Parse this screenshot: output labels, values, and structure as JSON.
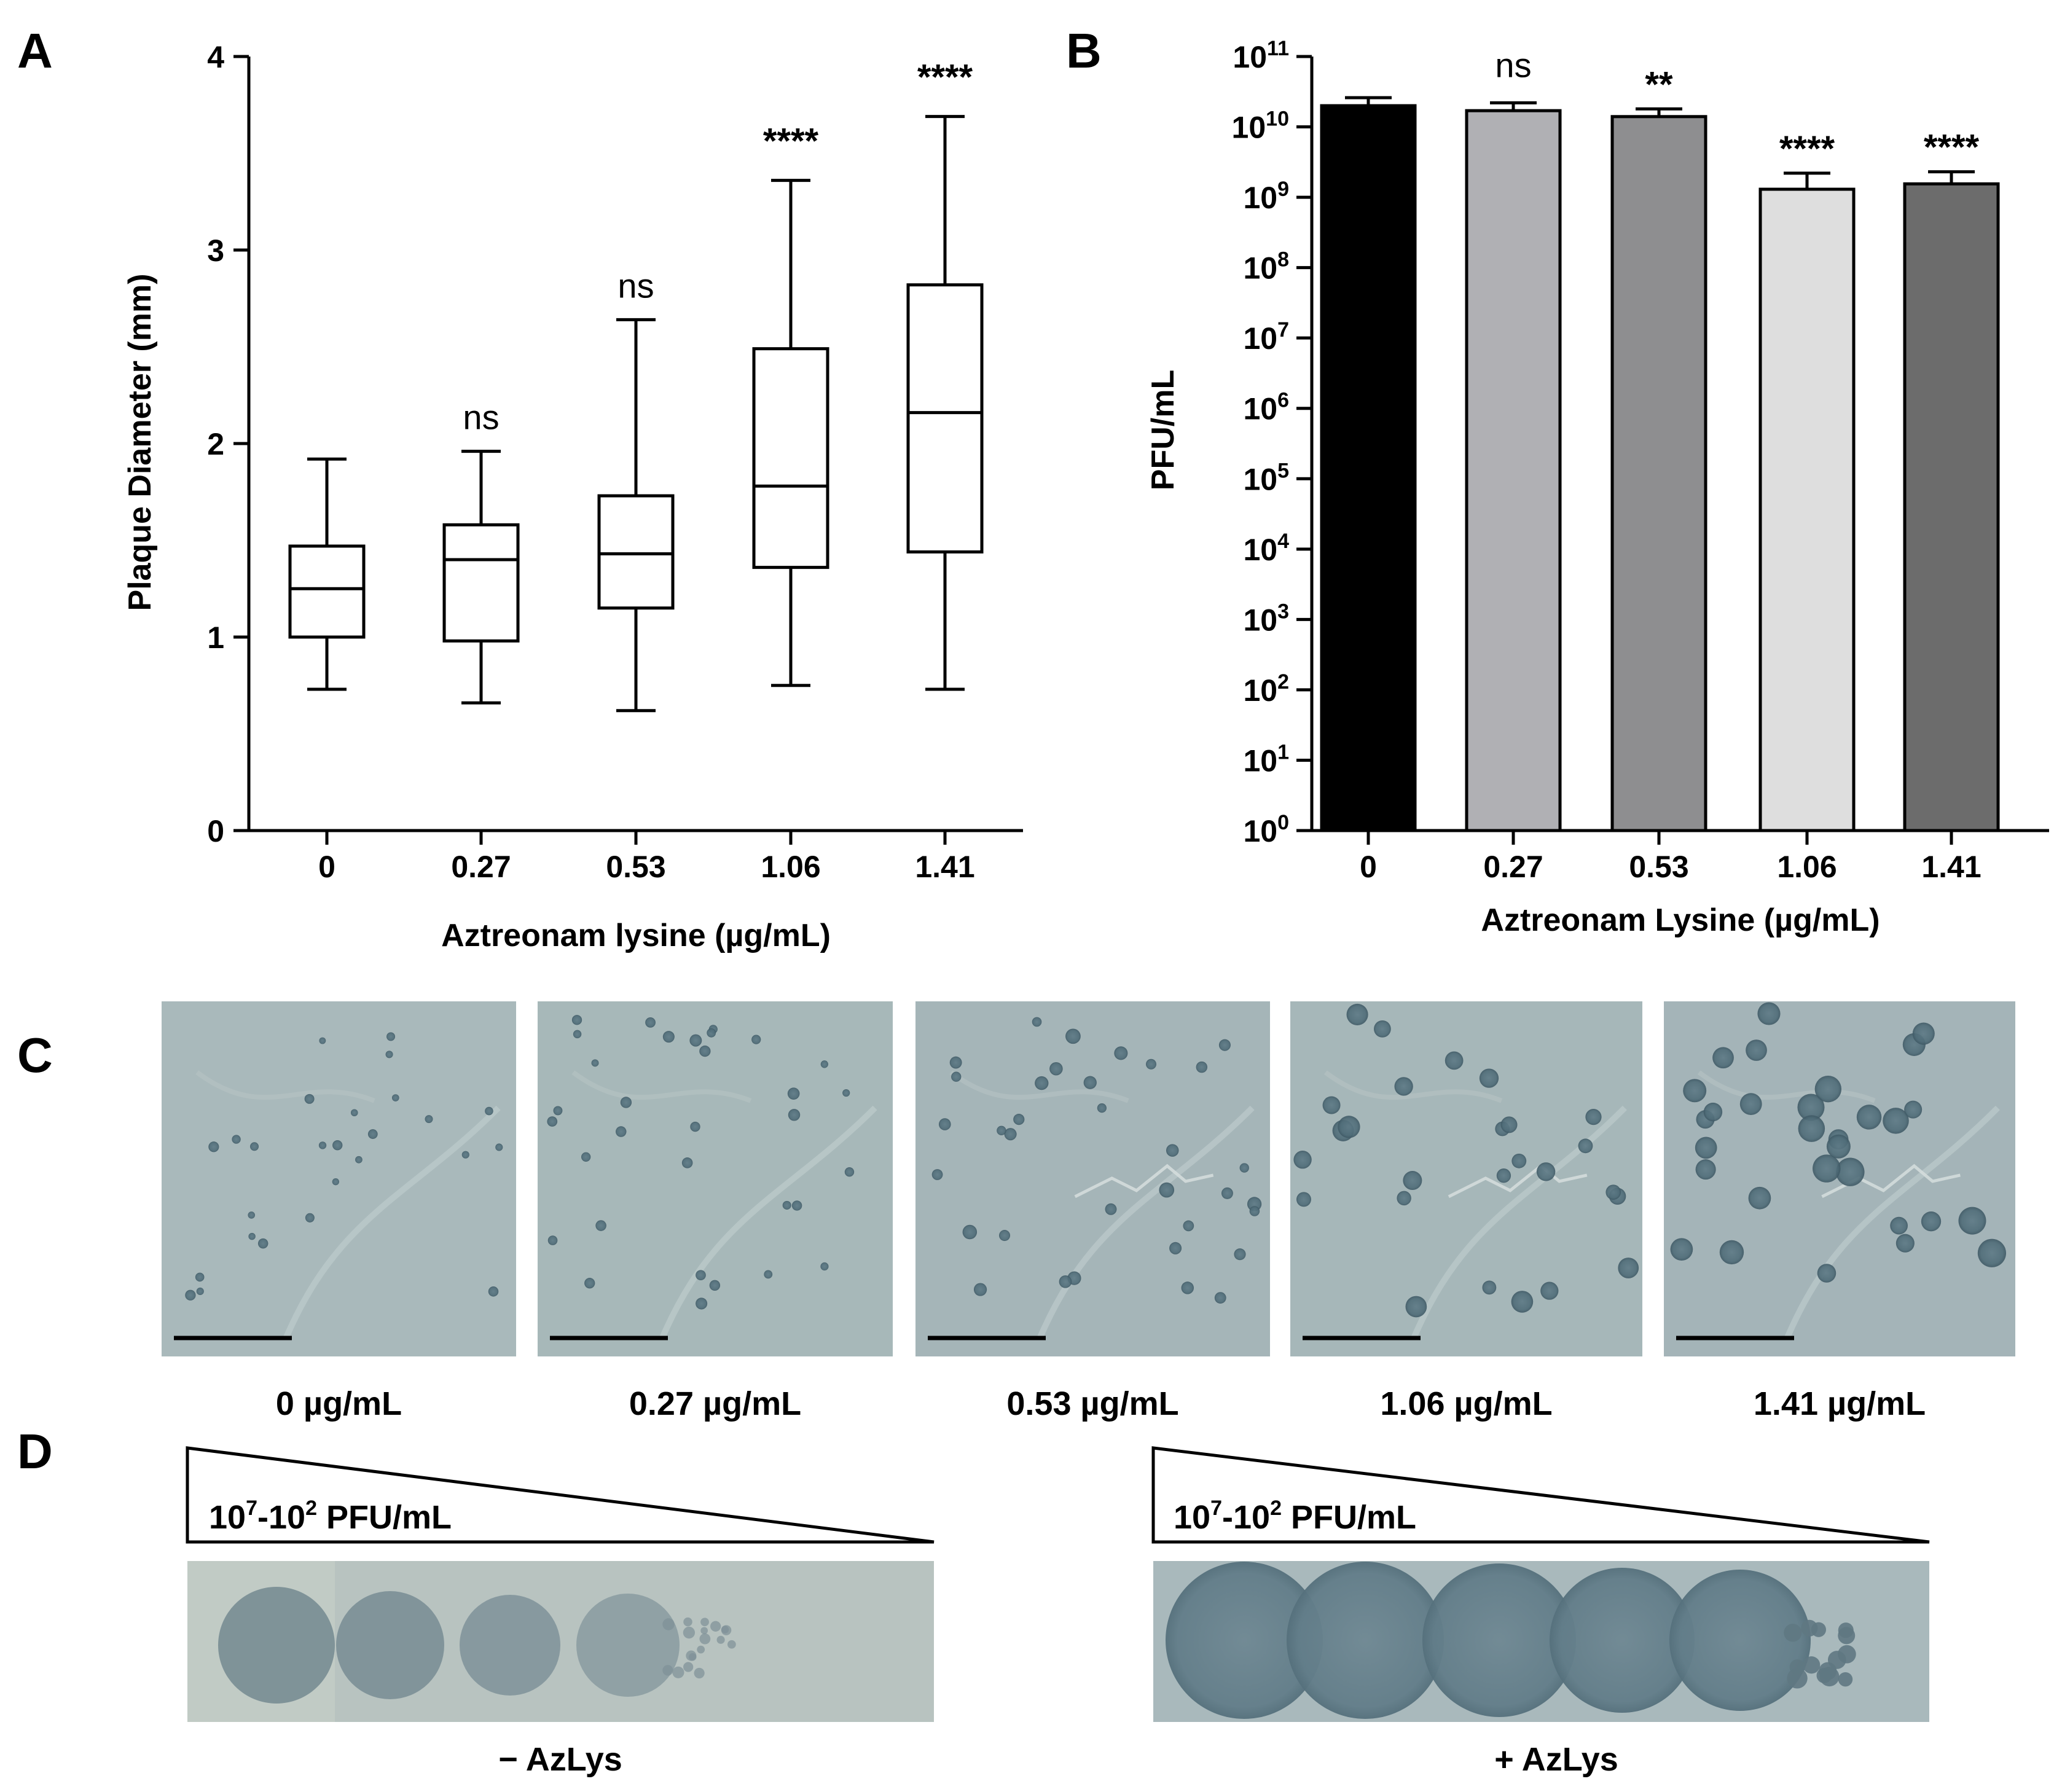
{
  "panels": {
    "A": {
      "letter": "A"
    },
    "B": {
      "letter": "B"
    },
    "C": {
      "letter": "C"
    },
    "D": {
      "letter": "D"
    }
  },
  "chart_data": [
    {
      "panel": "A",
      "type": "box",
      "categories": [
        "0",
        "0.27",
        "0.53",
        "1.06",
        "1.41"
      ],
      "boxes": [
        {
          "min": 0.73,
          "q1": 1.0,
          "median": 1.25,
          "q3": 1.47,
          "max": 1.92,
          "annotation": ""
        },
        {
          "min": 0.66,
          "q1": 0.98,
          "median": 1.4,
          "q3": 1.58,
          "max": 1.96,
          "annotation": "ns"
        },
        {
          "min": 0.62,
          "q1": 1.15,
          "median": 1.43,
          "q3": 1.73,
          "max": 2.64,
          "annotation": "ns"
        },
        {
          "min": 0.75,
          "q1": 1.36,
          "median": 1.78,
          "q3": 2.49,
          "max": 3.36,
          "annotation": "****"
        },
        {
          "min": 0.73,
          "q1": 1.44,
          "median": 2.16,
          "q3": 2.82,
          "max": 3.69,
          "annotation": "****"
        }
      ],
      "ylabel": "Plaque Diameter (mm)",
      "xlabel": "Aztreonam lysine (µg/mL)",
      "ylim": [
        0,
        4
      ],
      "yticks": [
        "0",
        "1",
        "2",
        "3",
        "4"
      ],
      "grid": false
    },
    {
      "panel": "B",
      "type": "bar",
      "scale": "log",
      "categories": [
        "0",
        "0.27",
        "0.53",
        "1.06",
        "1.41"
      ],
      "values": [
        20000000000.0,
        17000000000.0,
        14000000000.0,
        1300000000.0,
        1550000000.0
      ],
      "error_upper": [
        26000000000.0,
        22000000000.0,
        18000000000.0,
        2200000000.0,
        2300000000.0
      ],
      "annotations": [
        "",
        "ns",
        "**",
        "****",
        "****"
      ],
      "colors": [
        "#000000",
        "#b0b0b4",
        "#8e8e90",
        "#dedede",
        "#6c6c6c"
      ],
      "ylabel": "PFU/mL",
      "xlabel": "Aztreonam Lysine (µg/mL)",
      "ylim": [
        1,
        100000000000.0
      ],
      "ytick_base": "10",
      "ytick_exponents": [
        "0",
        "1",
        "2",
        "3",
        "4",
        "5",
        "6",
        "7",
        "8",
        "9",
        "10",
        "11"
      ],
      "grid": false
    }
  ],
  "panel_c": {
    "photo_labels": [
      "0 µg/mL",
      "0.27 µg/mL",
      "0.53 µg/mL",
      "1.06 µg/mL",
      "1.41 µg/mL"
    ]
  },
  "panel_d": {
    "left": {
      "gradient_label_base": "10",
      "exp_high": "7",
      "exp_low": "2",
      "gradient_label_mid": "-",
      "gradient_label_unit": "PFU/mL",
      "caption": "− AzLys"
    },
    "right": {
      "gradient_label_base": "10",
      "exp_high": "7",
      "exp_low": "2",
      "gradient_label_mid": "-",
      "gradient_label_unit": "PFU/mL",
      "caption": "+ AzLys"
    }
  }
}
